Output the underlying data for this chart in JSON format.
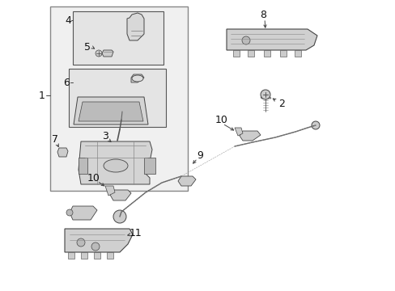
{
  "bg_color": "#ffffff",
  "fig_width": 4.89,
  "fig_height": 3.6,
  "dpi": 100,
  "outer_box": [
    62,
    8,
    198,
    8,
    198,
    228,
    62,
    228
  ],
  "inner_box1": [
    88,
    18,
    198,
    18,
    198,
    78,
    88,
    78
  ],
  "inner_box2": [
    82,
    88,
    198,
    88,
    198,
    158,
    82,
    158
  ],
  "gray_fill": "#e8e8e8",
  "line_color": "#444444",
  "label_color": "#111111"
}
